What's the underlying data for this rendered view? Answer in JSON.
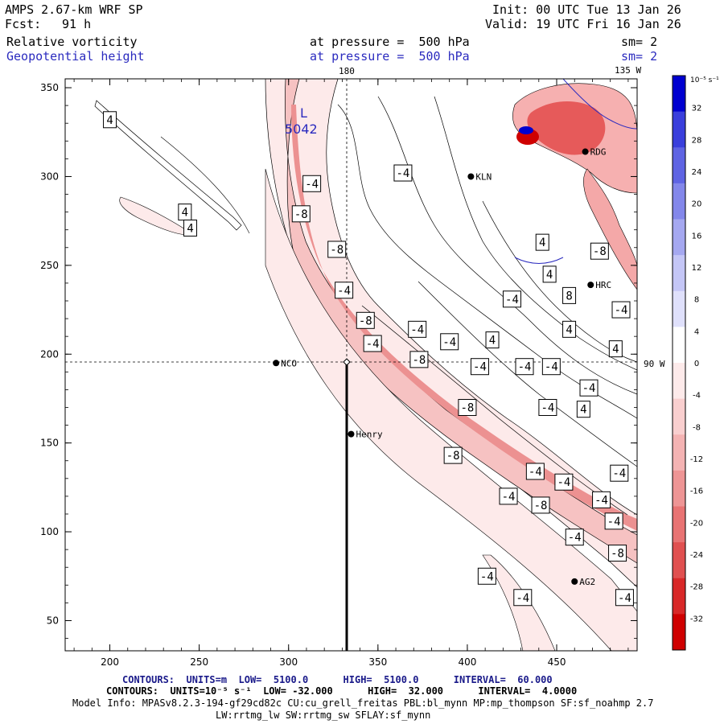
{
  "header": {
    "model": "AMPS 2.67-km WRF SP",
    "forecast_label": "Fcst:",
    "forecast_value": "91 h",
    "init": "Init: 00 UTC Tue 13 Jan 26",
    "valid": "Valid: 19 UTC Fri 16 Jan 26",
    "field1": "Relative vorticity",
    "field2": "Geopotential height",
    "pressure1": "at pressure =  500 hPa",
    "pressure2": "at pressure =  500 hPa",
    "sm1": "sm= 2",
    "sm2": "sm= 2"
  },
  "colors": {
    "negative_scale": [
      "#fdeaea",
      "#f9cfcf",
      "#f4b3b3",
      "#ee9595",
      "#e87373",
      "#e05050",
      "#d82828",
      "#cf0000"
    ],
    "positive_scale": [
      "#ffffff",
      "#dfe0fb",
      "#c4c6f6",
      "#a5a8f0",
      "#8387ea",
      "#5f64e3",
      "#3a3fdc",
      "#0000d0"
    ],
    "contour_blue": "#2b2bbf"
  },
  "chart_data": {
    "type": "heatmap",
    "title": "Relative vorticity / Geopotential height at 500 hPa",
    "xlim": [
      175,
      495
    ],
    "ylim": [
      33,
      355
    ],
    "xticks": [
      200,
      250,
      300,
      350,
      400,
      450
    ],
    "yticks": [
      50,
      100,
      150,
      200,
      250,
      300,
      350
    ],
    "xtick_labels": [
      "200",
      "250",
      "300",
      "350",
      "400",
      "450"
    ],
    "ytick_labels": [
      "50",
      "100",
      "150",
      "200",
      "250",
      "300",
      "350"
    ],
    "grid_labels": [
      {
        "text": "180",
        "position": "top"
      },
      {
        "text": "135 W",
        "position": "top-right"
      },
      {
        "text": "90 W",
        "position": "right"
      }
    ],
    "colorbar": {
      "units": "10⁻⁵ s⁻¹",
      "ticks": [
        32,
        28,
        24,
        20,
        16,
        12,
        8,
        4,
        0,
        -4,
        -8,
        -12,
        -16,
        -20,
        -24,
        -28,
        -32
      ],
      "tick_labels": [
        "32",
        "28",
        "24",
        "20",
        "16",
        "12",
        "8",
        "4",
        "0",
        "-4",
        "-8",
        "-12",
        "-16",
        "-20",
        "-24",
        "-28",
        "-32"
      ]
    },
    "stations": [
      {
        "name": "NCO",
        "x": 293,
        "y": 195
      },
      {
        "name": "Henry",
        "x": 335,
        "y": 155
      },
      {
        "name": "RDG",
        "x": 466,
        "y": 314
      },
      {
        "name": "KLN",
        "x": 402,
        "y": 300
      },
      {
        "name": "HRC",
        "x": 469,
        "y": 239
      },
      {
        "name": "AG2",
        "x": 460,
        "y": 72
      }
    ],
    "low": {
      "symbol": "L",
      "value": "5042",
      "x": 309,
      "y": 324
    },
    "contour_labels": [
      {
        "t": "4",
        "x": 200,
        "y": 332
      },
      {
        "t": "4",
        "x": 242,
        "y": 280
      },
      {
        "t": "4",
        "x": 245,
        "y": 271
      },
      {
        "t": "-4",
        "x": 313,
        "y": 296
      },
      {
        "t": "-8",
        "x": 307,
        "y": 279
      },
      {
        "t": "-8",
        "x": 327,
        "y": 259
      },
      {
        "t": "-4",
        "x": 331,
        "y": 236
      },
      {
        "t": "-8",
        "x": 343,
        "y": 219
      },
      {
        "t": "-4",
        "x": 347,
        "y": 206
      },
      {
        "t": "-4",
        "x": 364,
        "y": 302
      },
      {
        "t": "-4",
        "x": 372,
        "y": 214
      },
      {
        "t": "-8",
        "x": 373,
        "y": 197
      },
      {
        "t": "-4",
        "x": 390,
        "y": 207
      },
      {
        "t": "-4",
        "x": 407,
        "y": 193
      },
      {
        "t": "4",
        "x": 414,
        "y": 208
      },
      {
        "t": "-4",
        "x": 432,
        "y": 193
      },
      {
        "t": "-4",
        "x": 447,
        "y": 193
      },
      {
        "t": "-4",
        "x": 425,
        "y": 231
      },
      {
        "t": "4",
        "x": 442,
        "y": 263
      },
      {
        "t": "4",
        "x": 446,
        "y": 245
      },
      {
        "t": "-8",
        "x": 474,
        "y": 258
      },
      {
        "t": "8",
        "x": 457,
        "y": 233
      },
      {
        "t": "-4",
        "x": 486,
        "y": 225
      },
      {
        "t": "4",
        "x": 457,
        "y": 214
      },
      {
        "t": "4",
        "x": 483,
        "y": 203
      },
      {
        "t": "-4",
        "x": 468,
        "y": 181
      },
      {
        "t": "4",
        "x": 465,
        "y": 169
      },
      {
        "t": "-8",
        "x": 400,
        "y": 170
      },
      {
        "t": "-4",
        "x": 445,
        "y": 170
      },
      {
        "t": "-8",
        "x": 392,
        "y": 143
      },
      {
        "t": "-4",
        "x": 438,
        "y": 134
      },
      {
        "t": "-4",
        "x": 454,
        "y": 128
      },
      {
        "t": "-4",
        "x": 485,
        "y": 133
      },
      {
        "t": "-4",
        "x": 423,
        "y": 120
      },
      {
        "t": "-8",
        "x": 441,
        "y": 115
      },
      {
        "t": "-4",
        "x": 475,
        "y": 118
      },
      {
        "t": "-4",
        "x": 482,
        "y": 106
      },
      {
        "t": "-4",
        "x": 460,
        "y": 97
      },
      {
        "t": "-8",
        "x": 484,
        "y": 88
      },
      {
        "t": "-4",
        "x": 411,
        "y": 75
      },
      {
        "t": "-4",
        "x": 431,
        "y": 63
      },
      {
        "t": "-4",
        "x": 488,
        "y": 63
      }
    ]
  },
  "footer": {
    "contours1": "CONTOURS:  UNITS=m  LOW=  5100.0      HIGH=  5100.0      INTERVAL=  60.000",
    "contours2": "CONTOURS:  UNITS=10⁻⁵ s⁻¹  LOW= -32.000      HIGH=  32.000      INTERVAL=  4.0000",
    "model_info": "Model Info: MPASv8.2.3-194-gf29cd82c CU:cu_grell_freitas PBL:bl_mynn MP:mp_thompson SF:sf_noahmp 2.7",
    "model_info2": "LW:rrtmg_lw SW:rrtmg_sw SFLAY:sf_mynn"
  }
}
